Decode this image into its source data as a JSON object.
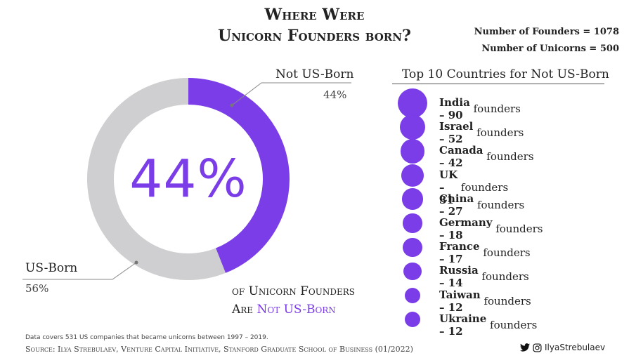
{
  "title": {
    "line1": "Where Were",
    "line2": "Unicorn Founders born?"
  },
  "stats": {
    "founders": "Number of Founders = 1078",
    "unicorns": "Number of Unicorns  = 500"
  },
  "donut": {
    "center_text": "44%",
    "not_us_label": "Not US-Born",
    "not_us_pct": "44%",
    "us_label": "US-Born",
    "us_pct": "56%",
    "caption_line1": "of Unicorn Founders",
    "caption_line2_a": "Are ",
    "caption_line2_b": "Not US-Born"
  },
  "list": {
    "title": "Top 10 Countries for Not US-Born"
  },
  "footer": {
    "note": "Data covers 531 US companies that became unicorns between 1997 – 2019.",
    "source": "Source: Ilya Strebulaev, Venture Capital Initiative, Stanford Graduate School of Business (01/2022)",
    "handle": "IlyaStrebulaev"
  },
  "colors": {
    "accent": "#7a3de8",
    "ring_gray": "#cfcfd1"
  },
  "chart_data": [
    {
      "type": "pie",
      "categories": [
        "Not US-Born",
        "US-Born"
      ],
      "values": [
        44,
        56
      ],
      "colors": [
        "#7a3de8",
        "#cfcfd1"
      ],
      "title": "Where Were Unicorn Founders born?"
    },
    {
      "type": "bubble",
      "title": "Top 10 Countries for Not US-Born",
      "categories": [
        "India",
        "Israel",
        "Canada",
        "UK",
        "China",
        "Germany",
        "France",
        "Russia",
        "Taiwan",
        "Ukraine"
      ],
      "values": [
        90,
        52,
        42,
        31,
        27,
        18,
        17,
        14,
        12,
        12
      ],
      "labels": [
        {
          "name": "India",
          "count": "90",
          "unit": " founders"
        },
        {
          "name": "Israel",
          "count": "52",
          "unit": " founders"
        },
        {
          "name": "Canada",
          "count": "42",
          "unit": " founders"
        },
        {
          "name": "UK",
          "count": "31",
          "unit": " founders"
        },
        {
          "name": "China",
          "count": "27",
          "unit": " founders"
        },
        {
          "name": "Germany",
          "count": "18",
          "unit": " founders"
        },
        {
          "name": "France",
          "count": "17",
          "unit": " founders"
        },
        {
          "name": "Russia",
          "count": "14",
          "unit": " founders"
        },
        {
          "name": "Taiwan",
          "count": "12",
          "unit": " founders"
        },
        {
          "name": "Ukraine",
          "count": "12",
          "unit": " founders"
        }
      ]
    }
  ]
}
